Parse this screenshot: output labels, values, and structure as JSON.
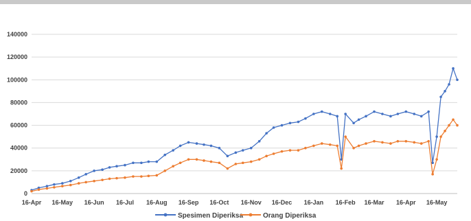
{
  "chart_data": {
    "type": "line",
    "title": "",
    "xlabel": "",
    "ylabel": "",
    "ylim": [
      0,
      140000
    ],
    "yticks": [
      0,
      20000,
      40000,
      60000,
      80000,
      100000,
      120000,
      140000
    ],
    "ytick_labels": [
      "0",
      "20000",
      "40000",
      "60000",
      "80000",
      "100000",
      "120000",
      "140000"
    ],
    "x_start": "2020-04-16",
    "x_end": "2021-06-05",
    "xtick_labels": [
      "16-Apr",
      "16-May",
      "16-Jun",
      "16-Jul",
      "16-Aug",
      "16-Sep",
      "16-Oct",
      "16-Nov",
      "16-Dec",
      "16-Jan",
      "16-Feb",
      "16-Mar",
      "16-Apr",
      "16-May"
    ],
    "xtick_dates": [
      "2020-04-16",
      "2020-05-16",
      "2020-06-16",
      "2020-07-16",
      "2020-08-16",
      "2020-09-16",
      "2020-10-16",
      "2020-11-16",
      "2020-12-16",
      "2021-01-16",
      "2021-02-16",
      "2021-03-16",
      "2021-04-16",
      "2021-05-16"
    ],
    "grid": true,
    "legend_position": "bottom",
    "series": [
      {
        "name": "Spesimen Diperiksa",
        "color": "#4472C4",
        "points": [
          [
            "2020-04-16",
            3000
          ],
          [
            "2020-04-23",
            5000
          ],
          [
            "2020-05-01",
            6500
          ],
          [
            "2020-05-08",
            8000
          ],
          [
            "2020-05-16",
            9000
          ],
          [
            "2020-05-24",
            11000
          ],
          [
            "2020-06-01",
            14000
          ],
          [
            "2020-06-08",
            17000
          ],
          [
            "2020-06-16",
            20000
          ],
          [
            "2020-06-24",
            21000
          ],
          [
            "2020-07-01",
            23000
          ],
          [
            "2020-07-08",
            24000
          ],
          [
            "2020-07-16",
            25000
          ],
          [
            "2020-07-24",
            27000
          ],
          [
            "2020-08-01",
            27000
          ],
          [
            "2020-08-08",
            28000
          ],
          [
            "2020-08-16",
            28000
          ],
          [
            "2020-08-24",
            34000
          ],
          [
            "2020-09-01",
            38000
          ],
          [
            "2020-09-08",
            42000
          ],
          [
            "2020-09-16",
            45000
          ],
          [
            "2020-09-24",
            44000
          ],
          [
            "2020-10-01",
            43000
          ],
          [
            "2020-10-08",
            42000
          ],
          [
            "2020-10-16",
            40000
          ],
          [
            "2020-10-24",
            33000
          ],
          [
            "2020-11-01",
            36000
          ],
          [
            "2020-11-08",
            38000
          ],
          [
            "2020-11-16",
            40000
          ],
          [
            "2020-11-24",
            46000
          ],
          [
            "2020-12-01",
            53000
          ],
          [
            "2020-12-08",
            58000
          ],
          [
            "2020-12-16",
            60000
          ],
          [
            "2020-12-24",
            62000
          ],
          [
            "2021-01-01",
            63000
          ],
          [
            "2021-01-08",
            66000
          ],
          [
            "2021-01-16",
            70000
          ],
          [
            "2021-01-24",
            72000
          ],
          [
            "2021-02-01",
            70000
          ],
          [
            "2021-02-08",
            68000
          ],
          [
            "2021-02-12",
            30000
          ],
          [
            "2021-02-16",
            70000
          ],
          [
            "2021-02-24",
            62000
          ],
          [
            "2021-03-01",
            65000
          ],
          [
            "2021-03-08",
            68000
          ],
          [
            "2021-03-16",
            72000
          ],
          [
            "2021-03-24",
            70000
          ],
          [
            "2021-04-01",
            68000
          ],
          [
            "2021-04-08",
            70000
          ],
          [
            "2021-04-16",
            72000
          ],
          [
            "2021-04-24",
            70000
          ],
          [
            "2021-05-01",
            68000
          ],
          [
            "2021-05-08",
            72000
          ],
          [
            "2021-05-12",
            27000
          ],
          [
            "2021-05-16",
            50000
          ],
          [
            "2021-05-20",
            85000
          ],
          [
            "2021-05-24",
            90000
          ],
          [
            "2021-05-28",
            96000
          ],
          [
            "2021-06-01",
            110000
          ],
          [
            "2021-06-05",
            100000
          ]
        ]
      },
      {
        "name": "Orang Diperiksa",
        "color": "#ED7D31",
        "points": [
          [
            "2020-04-16",
            2000
          ],
          [
            "2020-04-23",
            3500
          ],
          [
            "2020-05-01",
            4500
          ],
          [
            "2020-05-08",
            5500
          ],
          [
            "2020-05-16",
            6500
          ],
          [
            "2020-05-24",
            7500
          ],
          [
            "2020-06-01",
            9000
          ],
          [
            "2020-06-08",
            10000
          ],
          [
            "2020-06-16",
            11000
          ],
          [
            "2020-06-24",
            12000
          ],
          [
            "2020-07-01",
            13000
          ],
          [
            "2020-07-08",
            13500
          ],
          [
            "2020-07-16",
            14000
          ],
          [
            "2020-07-24",
            15000
          ],
          [
            "2020-08-01",
            15000
          ],
          [
            "2020-08-08",
            15500
          ],
          [
            "2020-08-16",
            16000
          ],
          [
            "2020-08-24",
            20000
          ],
          [
            "2020-09-01",
            24000
          ],
          [
            "2020-09-08",
            27000
          ],
          [
            "2020-09-16",
            30000
          ],
          [
            "2020-09-24",
            30000
          ],
          [
            "2020-10-01",
            29000
          ],
          [
            "2020-10-08",
            28000
          ],
          [
            "2020-10-16",
            27000
          ],
          [
            "2020-10-24",
            22000
          ],
          [
            "2020-11-01",
            26000
          ],
          [
            "2020-11-08",
            27000
          ],
          [
            "2020-11-16",
            28000
          ],
          [
            "2020-11-24",
            30000
          ],
          [
            "2020-12-01",
            33000
          ],
          [
            "2020-12-08",
            35000
          ],
          [
            "2020-12-16",
            37000
          ],
          [
            "2020-12-24",
            38000
          ],
          [
            "2021-01-01",
            38000
          ],
          [
            "2021-01-08",
            40000
          ],
          [
            "2021-01-16",
            42000
          ],
          [
            "2021-01-24",
            44000
          ],
          [
            "2021-02-01",
            43000
          ],
          [
            "2021-02-08",
            42000
          ],
          [
            "2021-02-12",
            22000
          ],
          [
            "2021-02-16",
            50000
          ],
          [
            "2021-02-24",
            40000
          ],
          [
            "2021-03-01",
            42000
          ],
          [
            "2021-03-08",
            44000
          ],
          [
            "2021-03-16",
            46000
          ],
          [
            "2021-03-24",
            45000
          ],
          [
            "2021-04-01",
            44000
          ],
          [
            "2021-04-08",
            46000
          ],
          [
            "2021-04-16",
            46000
          ],
          [
            "2021-04-24",
            45000
          ],
          [
            "2021-05-01",
            44000
          ],
          [
            "2021-05-08",
            46000
          ],
          [
            "2021-05-12",
            17000
          ],
          [
            "2021-05-16",
            30000
          ],
          [
            "2021-05-20",
            50000
          ],
          [
            "2021-05-24",
            55000
          ],
          [
            "2021-05-28",
            60000
          ],
          [
            "2021-06-01",
            65000
          ],
          [
            "2021-06-05",
            60000
          ]
        ]
      }
    ]
  }
}
